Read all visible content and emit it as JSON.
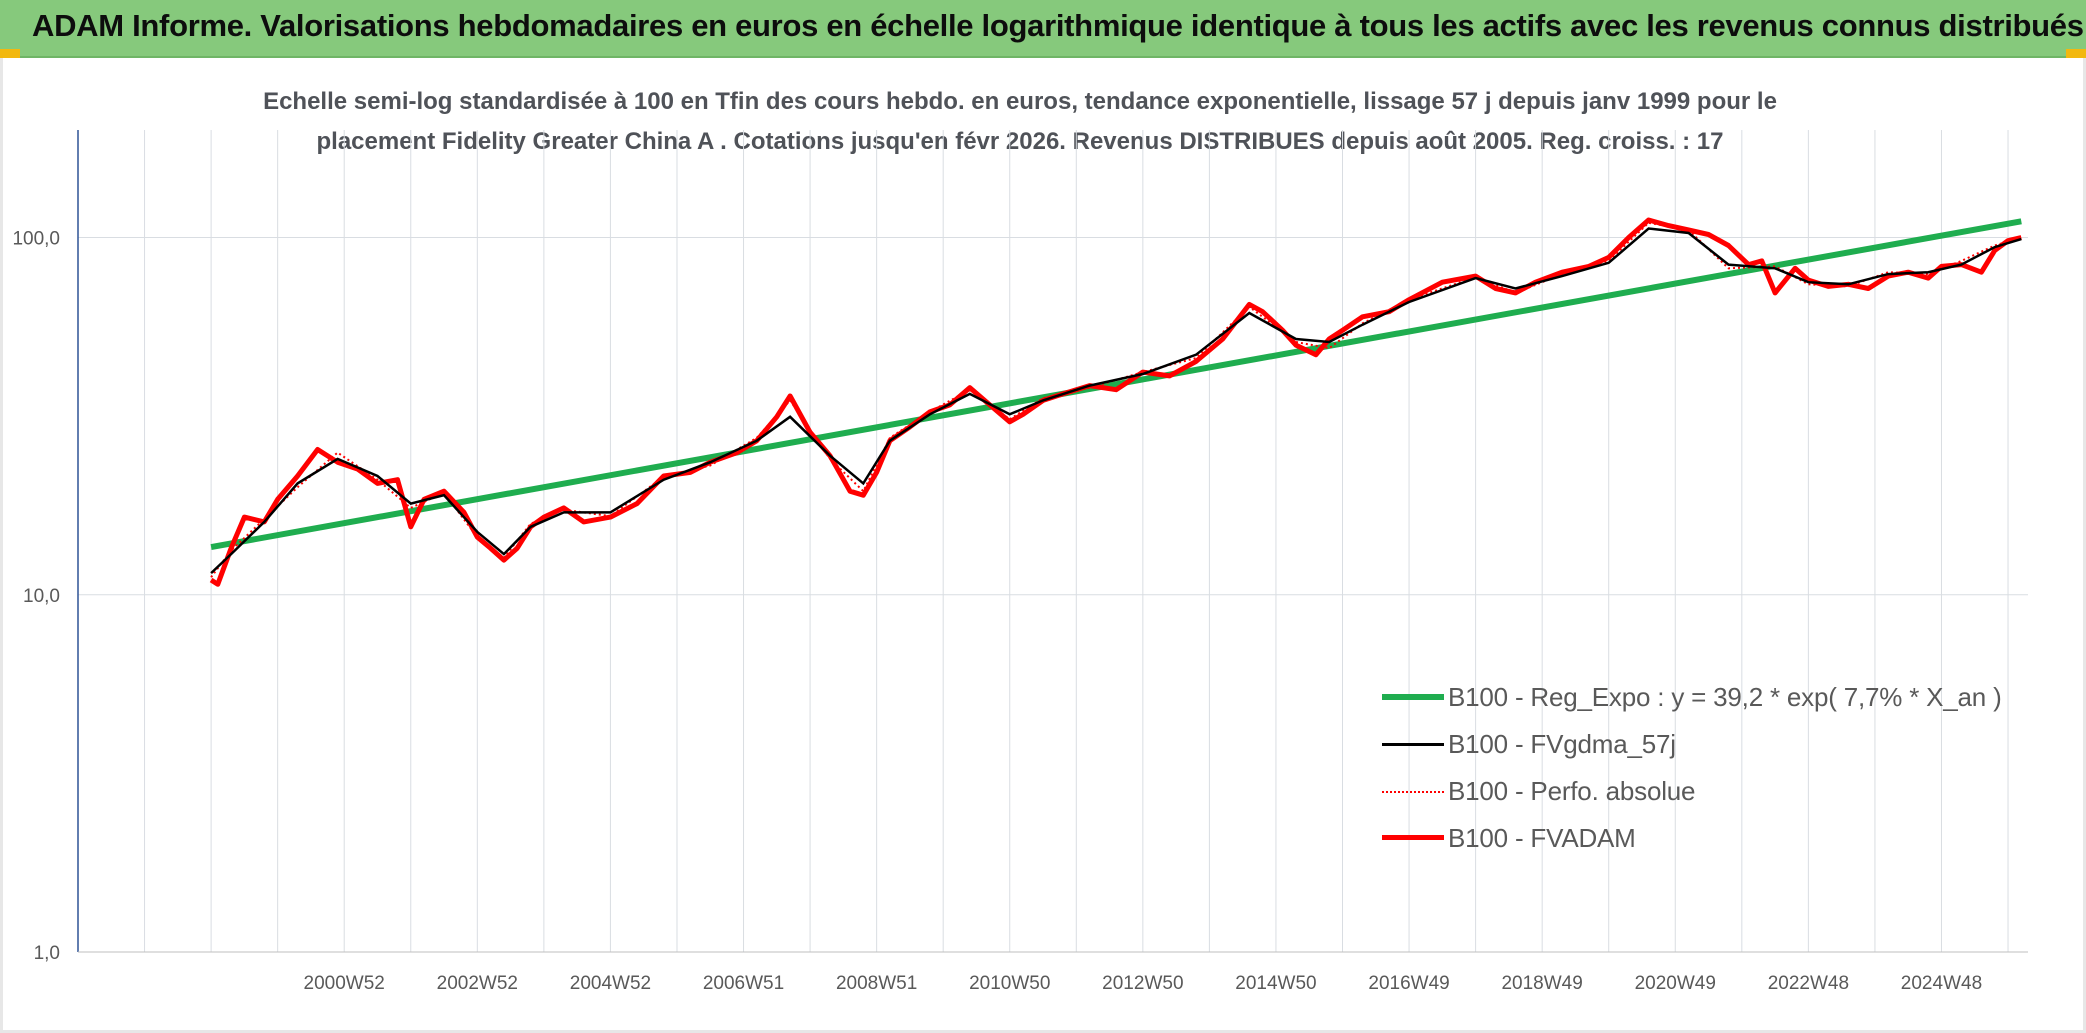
{
  "banner": {
    "title": "ADAM Informe. Valorisations hebdomadaires en euros en échelle logarithmique identique à tous les actifs avec les revenus connus distribués"
  },
  "colors": {
    "banner": "#86c97c",
    "regression": "#1fad4f",
    "smoothed": "#000000",
    "absolute": "#ff0000",
    "fvadam": "#ff0000",
    "grid": "#d9dde2",
    "axis": "#2f5496"
  },
  "chart_data": {
    "type": "line",
    "title_line1": "Echelle semi-log standardisée à 100 en Tfin des cours hebdo. en euros, tendance exponentielle, lissage 57 j depuis janv 1999 pour le",
    "title_line2": "placement Fidelity Greater China A . Cotations jusqu'en févr 2026. Revenus DISTRIBUES depuis août 2005. Reg. croiss. : 17",
    "y_scale": "log",
    "ylim": [
      1,
      200
    ],
    "y_ticks": [
      "1,0",
      "10,0",
      "100,0"
    ],
    "y_tick_values": [
      1,
      10,
      100
    ],
    "xlim": [
      1997.0,
      2026.3
    ],
    "x_ticks": [
      "2000W52",
      "2002W52",
      "2004W52",
      "2006W51",
      "2008W51",
      "2010W50",
      "2012W50",
      "2014W50",
      "2016W49",
      "2018W49",
      "2020W49",
      "2022W48",
      "2024W48"
    ],
    "x_tick_values": [
      2001,
      2003,
      2005,
      2007,
      2009,
      2011,
      2013,
      2015,
      2017,
      2019,
      2021,
      2023,
      2025
    ],
    "grid": "vertical",
    "legend_position": "bottom-right",
    "series": [
      {
        "name": "B100 - Reg_Expo : y = 39,2 * exp( 7,7% *  X_an )",
        "style": "thick-green",
        "x": [
          1999.0,
          2026.2
        ],
        "y": [
          13.6,
          111.0
        ]
      },
      {
        "name": "B100 - FVgdma_57j",
        "style": "thin-black",
        "x": [
          1999.0,
          1999.3,
          1999.8,
          2000.3,
          2000.9,
          2001.5,
          2002.0,
          2002.5,
          2003.0,
          2003.4,
          2003.8,
          2004.3,
          2005.0,
          2005.8,
          2006.5,
          2007.2,
          2007.7,
          2008.3,
          2008.8,
          2009.2,
          2009.8,
          2010.4,
          2011.0,
          2011.5,
          2012.2,
          2013.0,
          2013.8,
          2014.6,
          2015.3,
          2015.8,
          2016.3,
          2017.0,
          2018.0,
          2018.6,
          2019.3,
          2020.0,
          2020.6,
          2021.2,
          2021.8,
          2022.5,
          2023.0,
          2023.6,
          2024.2,
          2024.8,
          2025.3,
          2025.8,
          2026.2
        ],
        "y": [
          11.5,
          13.0,
          16.0,
          20.5,
          24.0,
          21.5,
          18.0,
          19.0,
          15.0,
          13.0,
          15.5,
          17.0,
          17.0,
          21.0,
          23.5,
          27.0,
          31.5,
          24.5,
          20.5,
          27.0,
          32.0,
          36.5,
          32.0,
          35.0,
          38.5,
          41.5,
          47.0,
          61.5,
          52.0,
          51.0,
          57.0,
          66.0,
          77.0,
          72.0,
          78.0,
          85.0,
          106.0,
          103.0,
          84.0,
          82.0,
          75.0,
          74.0,
          79.0,
          80.0,
          84.0,
          94.0,
          99.0
        ]
      },
      {
        "name": "B100 - Perfo. absolue",
        "style": "dotted-red",
        "x": [
          1999.0,
          1999.3,
          1999.8,
          2000.3,
          2000.9,
          2001.5,
          2002.0,
          2002.5,
          2003.0,
          2003.4,
          2003.8,
          2004.3,
          2005.0,
          2005.8,
          2006.5,
          2007.2,
          2007.7,
          2008.3,
          2008.8,
          2009.2,
          2009.8,
          2010.4,
          2011.0,
          2011.5,
          2012.2,
          2013.0,
          2013.8,
          2014.6,
          2015.3,
          2015.8,
          2016.3,
          2017.0,
          2018.0,
          2018.6,
          2019.3,
          2020.0,
          2020.6,
          2021.2,
          2021.8,
          2022.5,
          2023.0,
          2023.6,
          2024.2,
          2024.8,
          2025.3,
          2025.8,
          2026.2
        ],
        "y": [
          11.2,
          13.3,
          16.3,
          20.0,
          25.0,
          21.0,
          17.5,
          19.3,
          14.5,
          12.7,
          15.8,
          17.3,
          16.6,
          21.4,
          23.0,
          27.5,
          35.0,
          24.0,
          19.5,
          27.5,
          32.5,
          37.5,
          31.0,
          35.5,
          38.0,
          42.0,
          46.0,
          64.0,
          51.0,
          49.0,
          57.5,
          67.0,
          77.5,
          70.0,
          79.0,
          86.0,
          110.0,
          105.0,
          82.0,
          83.0,
          74.0,
          73.0,
          80.0,
          79.0,
          86.0,
          95.0,
          100.0
        ]
      },
      {
        "name": "B100 - FVADAM",
        "style": "thick-red",
        "x": [
          1999.0,
          1999.1,
          1999.3,
          1999.5,
          1999.8,
          2000.0,
          2000.3,
          2000.6,
          2000.9,
          2001.2,
          2001.5,
          2001.8,
          2002.0,
          2002.2,
          2002.5,
          2002.8,
          2003.0,
          2003.2,
          2003.4,
          2003.6,
          2003.8,
          2004.0,
          2004.3,
          2004.6,
          2005.0,
          2005.4,
          2005.8,
          2006.2,
          2006.5,
          2006.9,
          2007.2,
          2007.5,
          2007.7,
          2008.0,
          2008.3,
          2008.6,
          2008.8,
          2009.0,
          2009.2,
          2009.5,
          2009.8,
          2010.1,
          2010.4,
          2010.7,
          2011.0,
          2011.2,
          2011.5,
          2011.8,
          2012.2,
          2012.6,
          2013.0,
          2013.4,
          2013.8,
          2014.2,
          2014.6,
          2014.8,
          2015.1,
          2015.3,
          2015.6,
          2015.8,
          2016.0,
          2016.3,
          2016.7,
          2017.0,
          2017.5,
          2018.0,
          2018.3,
          2018.6,
          2018.9,
          2019.3,
          2019.7,
          2020.0,
          2020.3,
          2020.6,
          2020.9,
          2021.2,
          2021.5,
          2021.8,
          2022.1,
          2022.3,
          2022.5,
          2022.8,
          2023.0,
          2023.3,
          2023.6,
          2023.9,
          2024.2,
          2024.5,
          2024.8,
          2025.0,
          2025.3,
          2025.6,
          2025.8,
          2026.0,
          2026.2
        ],
        "y": [
          11.0,
          10.7,
          13.5,
          16.5,
          16.0,
          18.5,
          21.5,
          25.5,
          23.5,
          22.5,
          20.5,
          21.0,
          15.5,
          18.5,
          19.5,
          17.0,
          14.5,
          13.5,
          12.5,
          13.5,
          15.5,
          16.5,
          17.5,
          16.0,
          16.5,
          18.0,
          21.5,
          22.0,
          23.5,
          25.0,
          27.0,
          31.5,
          36.0,
          28.5,
          24.5,
          19.5,
          19.0,
          22.0,
          27.0,
          29.5,
          32.5,
          34.0,
          38.0,
          34.0,
          30.5,
          32.0,
          35.0,
          36.5,
          38.5,
          37.5,
          42.0,
          41.0,
          45.0,
          52.0,
          65.0,
          62.0,
          55.0,
          50.0,
          47.0,
          52.0,
          55.0,
          60.0,
          62.0,
          67.0,
          75.0,
          78.0,
          72.0,
          70.0,
          75.0,
          80.0,
          83.0,
          88.0,
          100.0,
          112.0,
          108.0,
          105.0,
          102.0,
          95.0,
          84.0,
          86.0,
          70.0,
          82.0,
          76.0,
          73.0,
          74.0,
          72.0,
          78.0,
          80.0,
          77.0,
          83.0,
          84.0,
          80.0,
          92.0,
          98.0,
          100.0
        ]
      }
    ]
  }
}
